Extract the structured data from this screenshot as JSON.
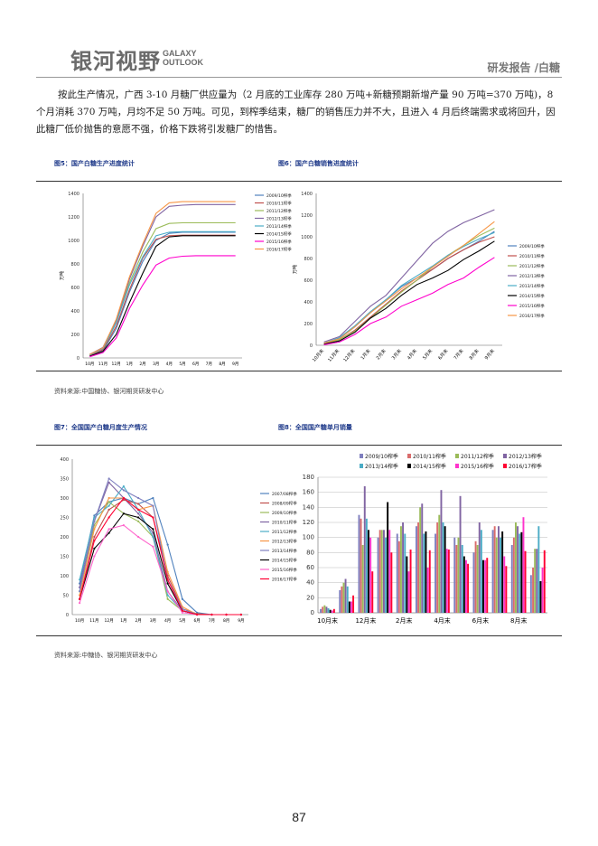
{
  "header": {
    "logo_cn": "银河视野",
    "logo_en_1": "GALAXY",
    "logo_en_2": "OUTLOOK",
    "report_tag": "研发报告 /白糖"
  },
  "body_text": "按此生产情况，广西 3-10 月糖厂供应量为（2 月底的工业库存 280 万吨+新糖预期新增产量 90 万吨=370 万吨)，8 个月消耗 370 万吨，月均不足 50 万吨。可见，到榨季结束，糖厂的销售压力并不大，且进入 4 月后终端需求或将回升，因此糖厂低价抛售的意愿不强，价格下跌将引发糖厂的惜售。",
  "figures": {
    "fig5_title": "图5：国产白糖生产进度统计",
    "fig6_title": "图6：国产白糖销售进度统计",
    "fig7_title": "图7：全国国产白糖月度生产情况",
    "fig8_title": "图8：全国国产糖单月销量",
    "source1": "资料来源:中国糖协、银河期货研发中心",
    "source2": "资料来源:中糖协、银河期货研发中心"
  },
  "page_number": "87",
  "chart_data": [
    {
      "id": "fig5",
      "type": "line",
      "title": "图5：国产白糖生产进度统计",
      "ylabel": "万吨",
      "ylim": [
        0,
        1400
      ],
      "yticks": [
        0,
        200,
        400,
        600,
        800,
        1000,
        1200,
        1400
      ],
      "x": [
        "10月",
        "11月",
        "12月",
        "1月",
        "2月",
        "3月",
        "4月",
        "5月",
        "6月",
        "7月",
        "8月",
        "9月"
      ],
      "series": [
        {
          "name": "2009/10榨季",
          "color": "#4f81bd",
          "values": [
            20,
            60,
            250,
            560,
            820,
            1000,
            1060,
            1070,
            1070,
            1070,
            1070,
            1070
          ]
        },
        {
          "name": "2010/11榨季",
          "color": "#c0504d",
          "values": [
            20,
            70,
            270,
            580,
            850,
            1010,
            1040,
            1045,
            1045,
            1045,
            1045,
            1045
          ]
        },
        {
          "name": "2011/12榨季",
          "color": "#9bbb59",
          "values": [
            30,
            80,
            300,
            640,
            900,
            1100,
            1145,
            1150,
            1150,
            1150,
            1150,
            1150
          ]
        },
        {
          "name": "2012/13榨季",
          "color": "#8064a2",
          "values": [
            30,
            90,
            320,
            670,
            950,
            1200,
            1290,
            1300,
            1305,
            1305,
            1305,
            1305
          ]
        },
        {
          "name": "2013/14榨季",
          "color": "#4bacc6",
          "values": [
            25,
            80,
            300,
            620,
            860,
            1040,
            1070,
            1075,
            1075,
            1075,
            1075,
            1075
          ]
        },
        {
          "name": "2014/15榨季",
          "color": "#000000",
          "values": [
            15,
            55,
            200,
            470,
            720,
            950,
            1030,
            1040,
            1040,
            1040,
            1040,
            1040
          ]
        },
        {
          "name": "2015/16榨季",
          "color": "#ff00cc",
          "values": [
            10,
            45,
            170,
            420,
            620,
            790,
            850,
            865,
            870,
            870,
            870,
            870
          ]
        },
        {
          "name": "2016/17榨季",
          "color": "#f79646",
          "values": [
            30,
            85,
            330,
            690,
            970,
            1230,
            1320,
            1330,
            1330,
            1330,
            1330,
            1330
          ]
        }
      ]
    },
    {
      "id": "fig6",
      "type": "line",
      "title": "图6：国产白糖销售进度统计",
      "ylabel": "万吨",
      "ylim": [
        0,
        1400
      ],
      "yticks": [
        0,
        200,
        400,
        600,
        800,
        1000,
        1200,
        1400
      ],
      "x": [
        "10月末",
        "11月末",
        "12月末",
        "1月末",
        "2月末",
        "3月末",
        "4月末",
        "5月末",
        "6月末",
        "7月末",
        "8月末",
        "9月末"
      ],
      "series": [
        {
          "name": "2009/10榨季",
          "color": "#4f81bd",
          "values": [
            20,
            60,
            170,
            300,
            420,
            540,
            620,
            700,
            800,
            880,
            960,
            1050
          ]
        },
        {
          "name": "2010/11榨季",
          "color": "#c0504d",
          "values": [
            15,
            50,
            140,
            260,
            380,
            500,
            600,
            700,
            800,
            880,
            950,
            1000
          ]
        },
        {
          "name": "2011/12榨季",
          "color": "#9bbb59",
          "values": [
            20,
            50,
            130,
            250,
            370,
            490,
            600,
            720,
            830,
            920,
            1010,
            1080
          ]
        },
        {
          "name": "2012/13榨季",
          "color": "#8064a2",
          "values": [
            30,
            80,
            220,
            360,
            460,
            620,
            780,
            940,
            1050,
            1130,
            1190,
            1250
          ]
        },
        {
          "name": "2013/14榨季",
          "color": "#4bacc6",
          "values": [
            20,
            70,
            180,
            310,
            420,
            550,
            640,
            730,
            830,
            910,
            980,
            1040
          ]
        },
        {
          "name": "2014/15榨季",
          "color": "#000000",
          "values": [
            10,
            40,
            120,
            250,
            340,
            460,
            560,
            620,
            690,
            790,
            870,
            960
          ]
        },
        {
          "name": "2015/16榨季",
          "color": "#ff00cc",
          "values": [
            5,
            30,
            100,
            200,
            260,
            360,
            420,
            480,
            560,
            620,
            720,
            810
          ]
        },
        {
          "name": "2016/17榨季",
          "color": "#f79646",
          "values": [
            20,
            60,
            170,
            300,
            410,
            520,
            620,
            720,
            820,
            920,
            1030,
            1140
          ]
        }
      ]
    },
    {
      "id": "fig7",
      "type": "line",
      "title": "图7：全国国产白糖月度生产情况",
      "ylim": [
        0,
        400
      ],
      "yticks": [
        0,
        50,
        100,
        150,
        200,
        250,
        300,
        350,
        400
      ],
      "x": [
        "10月",
        "11月",
        "12月",
        "1月",
        "2月",
        "3月",
        "4月",
        "5月",
        "6月",
        "7月",
        "8月",
        "9月"
      ],
      "series": [
        {
          "name": "2007/08榨季",
          "color": "#4f81bd",
          "values": [
            80,
            255,
            290,
            300,
            285,
            300,
            180,
            40,
            5,
            0,
            0,
            0
          ]
        },
        {
          "name": "2008/09榨季",
          "color": "#c0504d",
          "values": [
            40,
            200,
            270,
            295,
            285,
            250,
            100,
            15,
            2,
            0,
            0,
            0
          ]
        },
        {
          "name": "2009/10榨季",
          "color": "#9bbb59",
          "values": [
            60,
            230,
            290,
            260,
            240,
            200,
            40,
            10,
            0,
            0,
            0,
            0
          ]
        },
        {
          "name": "2010/11榨季",
          "color": "#8064a2",
          "values": [
            70,
            240,
            340,
            300,
            260,
            210,
            60,
            10,
            0,
            0,
            0,
            0
          ]
        },
        {
          "name": "2011/12榨季",
          "color": "#4bacc6",
          "values": [
            90,
            250,
            280,
            330,
            270,
            200,
            50,
            10,
            0,
            0,
            0,
            0
          ]
        },
        {
          "name": "2012/13榨季",
          "color": "#f79646",
          "values": [
            50,
            220,
            300,
            300,
            270,
            280,
            110,
            20,
            0,
            0,
            0,
            0
          ]
        },
        {
          "name": "2013/14榨季",
          "color": "#7f7fbf",
          "values": [
            60,
            240,
            350,
            320,
            300,
            280,
            90,
            15,
            0,
            0,
            0,
            0
          ]
        },
        {
          "name": "2014/15榨季",
          "color": "#000000",
          "values": [
            40,
            170,
            210,
            260,
            250,
            220,
            80,
            10,
            0,
            0,
            0,
            0
          ]
        },
        {
          "name": "2015/16榨季",
          "color": "#ff66cc",
          "values": [
            30,
            150,
            220,
            230,
            200,
            175,
            60,
            5,
            0,
            0,
            0,
            0
          ]
        },
        {
          "name": "2016/17榨季",
          "color": "#ff0033",
          "values": [
            40,
            190,
            250,
            300,
            270,
            250,
            90,
            10,
            0,
            0,
            0,
            0
          ]
        }
      ]
    },
    {
      "id": "fig8",
      "type": "bar",
      "title": "图8：全国国产糖单月销量",
      "ylim": [
        0,
        180
      ],
      "yticks": [
        0,
        20,
        40,
        60,
        80,
        100,
        120,
        140,
        160,
        180
      ],
      "categories": [
        "10月末",
        "11月末",
        "12月末",
        "1月末",
        "2月末",
        "3月末",
        "4月末",
        "5月末",
        "6月末",
        "7月末",
        "8月末",
        "9月末"
      ],
      "xlabels": [
        "10月末",
        "12月末",
        "2月末",
        "4月末",
        "6月末",
        "8月末"
      ],
      "series": [
        {
          "name": "2009/10榨季",
          "color": "#7f7fbf",
          "values": [
            5,
            30,
            130,
            100,
            105,
            115,
            105,
            100,
            80,
            110,
            90,
            50
          ]
        },
        {
          "name": "2010/11榨季",
          "color": "#d96c6c",
          "values": [
            8,
            35,
            125,
            110,
            95,
            120,
            120,
            90,
            95,
            115,
            100,
            60
          ]
        },
        {
          "name": "2011/12榨季",
          "color": "#9bbb59",
          "values": [
            10,
            40,
            90,
            110,
            115,
            140,
            130,
            100,
            90,
            100,
            120,
            85
          ]
        },
        {
          "name": "2012/13榨季",
          "color": "#8064a2",
          "values": [
            8,
            45,
            168,
            110,
            120,
            145,
            163,
            155,
            120,
            115,
            115,
            85
          ]
        },
        {
          "name": "2013/14榨季",
          "color": "#4bacc6",
          "values": [
            6,
            35,
            125,
            100,
            105,
            105,
            120,
            90,
            110,
            100,
            105,
            115
          ]
        },
        {
          "name": "2014/15榨季",
          "color": "#000000",
          "values": [
            4,
            15,
            110,
            147,
            75,
            108,
            115,
            75,
            70,
            108,
            107,
            42
          ]
        },
        {
          "name": "2015/16榨季",
          "color": "#ff33cc",
          "values": [
            3,
            15,
            100,
            110,
            55,
            60,
            85,
            70,
            70,
            75,
            127,
            60
          ]
        },
        {
          "name": "2016/17榨季",
          "color": "#ff0033",
          "values": [
            5,
            23,
            55,
            80,
            84,
            83,
            84,
            65,
            73,
            62,
            82,
            83
          ]
        }
      ]
    }
  ]
}
